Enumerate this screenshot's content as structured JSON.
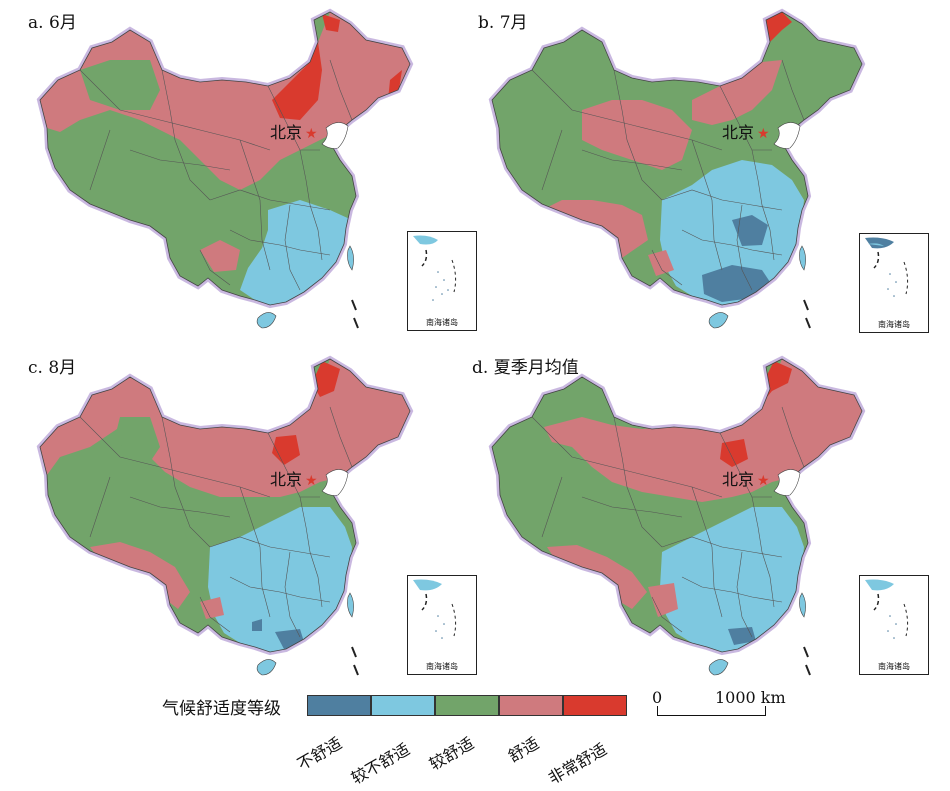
{
  "panels": [
    {
      "label": "a. 6月",
      "beijing": "北京"
    },
    {
      "label": "b. 7月",
      "beijing": "北京"
    },
    {
      "label": "c. 8月",
      "beijing": "北京"
    },
    {
      "label": "d. 夏季月均值",
      "beijing": "北京"
    }
  ],
  "inset_label": "南海诸岛",
  "legend": {
    "title": "气候舒适度等级",
    "items": [
      {
        "label": "不舒适",
        "color": "#4f7fa0"
      },
      {
        "label": "较不舒适",
        "color": "#7ec8e0"
      },
      {
        "label": "较舒适",
        "color": "#72a46a"
      },
      {
        "label": "舒适",
        "color": "#cf7a7e"
      },
      {
        "label": "非常舒适",
        "color": "#d93a2e"
      }
    ]
  },
  "scale": {
    "start": "0",
    "end": "1000 km"
  },
  "colors": {
    "border": "#c9b8e0",
    "sea": "#7ec8e0",
    "beijing_star": "#d93a2e"
  }
}
